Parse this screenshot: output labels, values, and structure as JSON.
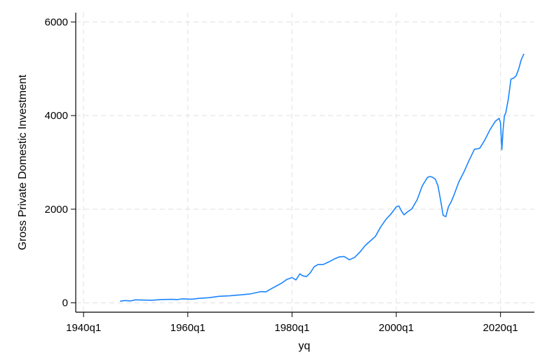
{
  "chart_data": {
    "type": "line",
    "title": "",
    "xlabel": "yq",
    "ylabel": "Gross Private Domestic Investment",
    "xlim": [
      1938.5,
      2026.5
    ],
    "ylim": [
      -200,
      6200
    ],
    "grid": true,
    "x_ticks": [
      {
        "value": 1940,
        "label": "1940q1"
      },
      {
        "value": 1960,
        "label": "1960q1"
      },
      {
        "value": 1980,
        "label": "1980q1"
      },
      {
        "value": 2000,
        "label": "2000q1"
      },
      {
        "value": 2020,
        "label": "2020q1"
      }
    ],
    "y_ticks": [
      {
        "value": 0,
        "label": "0"
      },
      {
        "value": 2000,
        "label": "2000"
      },
      {
        "value": 4000,
        "label": "4000"
      },
      {
        "value": 6000,
        "label": "6000"
      }
    ],
    "series": [
      {
        "name": "Gross Private Domestic Investment",
        "color": "#1a85ff",
        "x": [
          1947.0,
          1948.0,
          1949.0,
          1950.0,
          1951.0,
          1953.0,
          1955.0,
          1957.0,
          1958.0,
          1959.0,
          1960.0,
          1961.0,
          1962.0,
          1964.0,
          1966.0,
          1968.0,
          1970.0,
          1972.0,
          1974.0,
          1975.0,
          1976.0,
          1978.0,
          1979.0,
          1980.0,
          1980.75,
          1981.5,
          1982.0,
          1982.75,
          1983.5,
          1984.25,
          1985.0,
          1986.0,
          1987.0,
          1988.0,
          1989.0,
          1990.0,
          1991.0,
          1992.0,
          1993.0,
          1994.0,
          1995.0,
          1996.0,
          1997.0,
          1998.0,
          1999.0,
          2000.0,
          2000.5,
          2001.0,
          2001.5,
          2002.0,
          2003.0,
          2004.0,
          2005.0,
          2006.0,
          2006.5,
          2007.0,
          2007.5,
          2008.0,
          2008.5,
          2009.0,
          2009.5,
          2010.0,
          2010.5,
          2011.0,
          2012.0,
          2013.0,
          2014.0,
          2015.0,
          2016.0,
          2017.0,
          2018.0,
          2019.0,
          2019.75,
          2020.0,
          2020.25,
          2020.5,
          2020.75,
          2021.0,
          2021.5,
          2022.0,
          2022.5,
          2023.0,
          2023.5,
          2024.0,
          2024.5
        ],
        "values": [
          35,
          50,
          40,
          65,
          60,
          55,
          70,
          75,
          70,
          85,
          80,
          80,
          95,
          110,
          140,
          150,
          170,
          190,
          240,
          235,
          300,
          420,
          500,
          540,
          490,
          620,
          580,
          560,
          640,
          770,
          820,
          820,
          870,
          930,
          980,
          990,
          920,
          970,
          1080,
          1220,
          1320,
          1420,
          1620,
          1780,
          1900,
          2050,
          2070,
          1960,
          1880,
          1930,
          2010,
          2200,
          2500,
          2680,
          2700,
          2680,
          2640,
          2500,
          2200,
          1870,
          1840,
          2050,
          2150,
          2280,
          2580,
          2800,
          3050,
          3280,
          3300,
          3480,
          3700,
          3880,
          3940,
          3850,
          3270,
          3700,
          4000,
          4050,
          4350,
          4780,
          4800,
          4850,
          5000,
          5200,
          5320
        ]
      }
    ]
  }
}
